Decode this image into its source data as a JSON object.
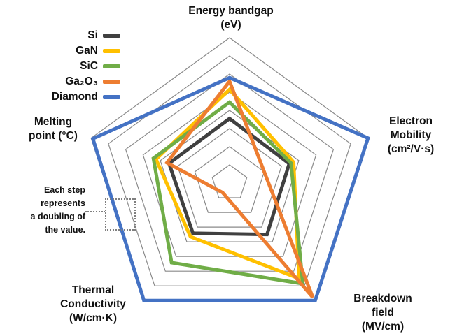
{
  "figure": {
    "kind": "pentagon radar chart comparing semiconductor materials",
    "background": "#ffffff"
  },
  "axis_labels": {
    "bandgap": "Energy bandgap\n(eV)",
    "mobility": "Electron\nMobility\n(cm²/V·s)",
    "breakdown": "Breakdown field\n(MV/cm)",
    "thermal": "Thermal\nConductivity\n(W/cm·K)",
    "melting": "Melting\npoint (°C)"
  },
  "annotation": {
    "text": "Each step\nrepresents\na doubling of\nthe value."
  },
  "legend": {
    "items": [
      {
        "label": "Si",
        "color": "#404040"
      },
      {
        "label": "GaN",
        "color": "#FFC000"
      },
      {
        "label": "SiC",
        "color": "#70AD47"
      },
      {
        "label": "Ga₂O₃",
        "color": "#ED7D31"
      },
      {
        "label": "Diamond",
        "color": "#4472C4"
      }
    ]
  },
  "chart_data": {
    "type": "radar",
    "title": "",
    "axes": [
      "Energy bandgap (eV)",
      "Electron Mobility (cm²/V·s)",
      "Breakdown field (MV/cm)",
      "Thermal Conductivity (W/cm·K)",
      "Melting point (°C)"
    ],
    "rings": 8,
    "grid_color": "#8a8a8a",
    "scale_note": "Log2 scale: each grid step outward represents a doubling of the value; no numeric tick labels are shown.",
    "values_unit": "radius in grid steps (0 = center, 8 = outer ring), read from figure",
    "series": [
      {
        "name": "Si",
        "color": "#404040",
        "values_steps": [
          3.55,
          3.45,
          3.5,
          3.42,
          3.5
        ]
      },
      {
        "name": "GaN",
        "color": "#FFC000",
        "values_steps": [
          5.15,
          3.7,
          6.5,
          3.65,
          4.25
        ]
      },
      {
        "name": "SiC",
        "color": "#70AD47",
        "values_steps": [
          4.45,
          3.55,
          6.85,
          5.42,
          4.4
        ]
      },
      {
        "name": "Ga₂O₃",
        "color": "#ED7D31",
        "values_steps": [
          5.6,
          2.0,
          7.78,
          0.65,
          3.62
        ]
      },
      {
        "name": "Diamond",
        "color": "#4472C4",
        "values_steps": [
          5.8,
          8.0,
          8.0,
          8.0,
          7.9
        ]
      }
    ]
  }
}
